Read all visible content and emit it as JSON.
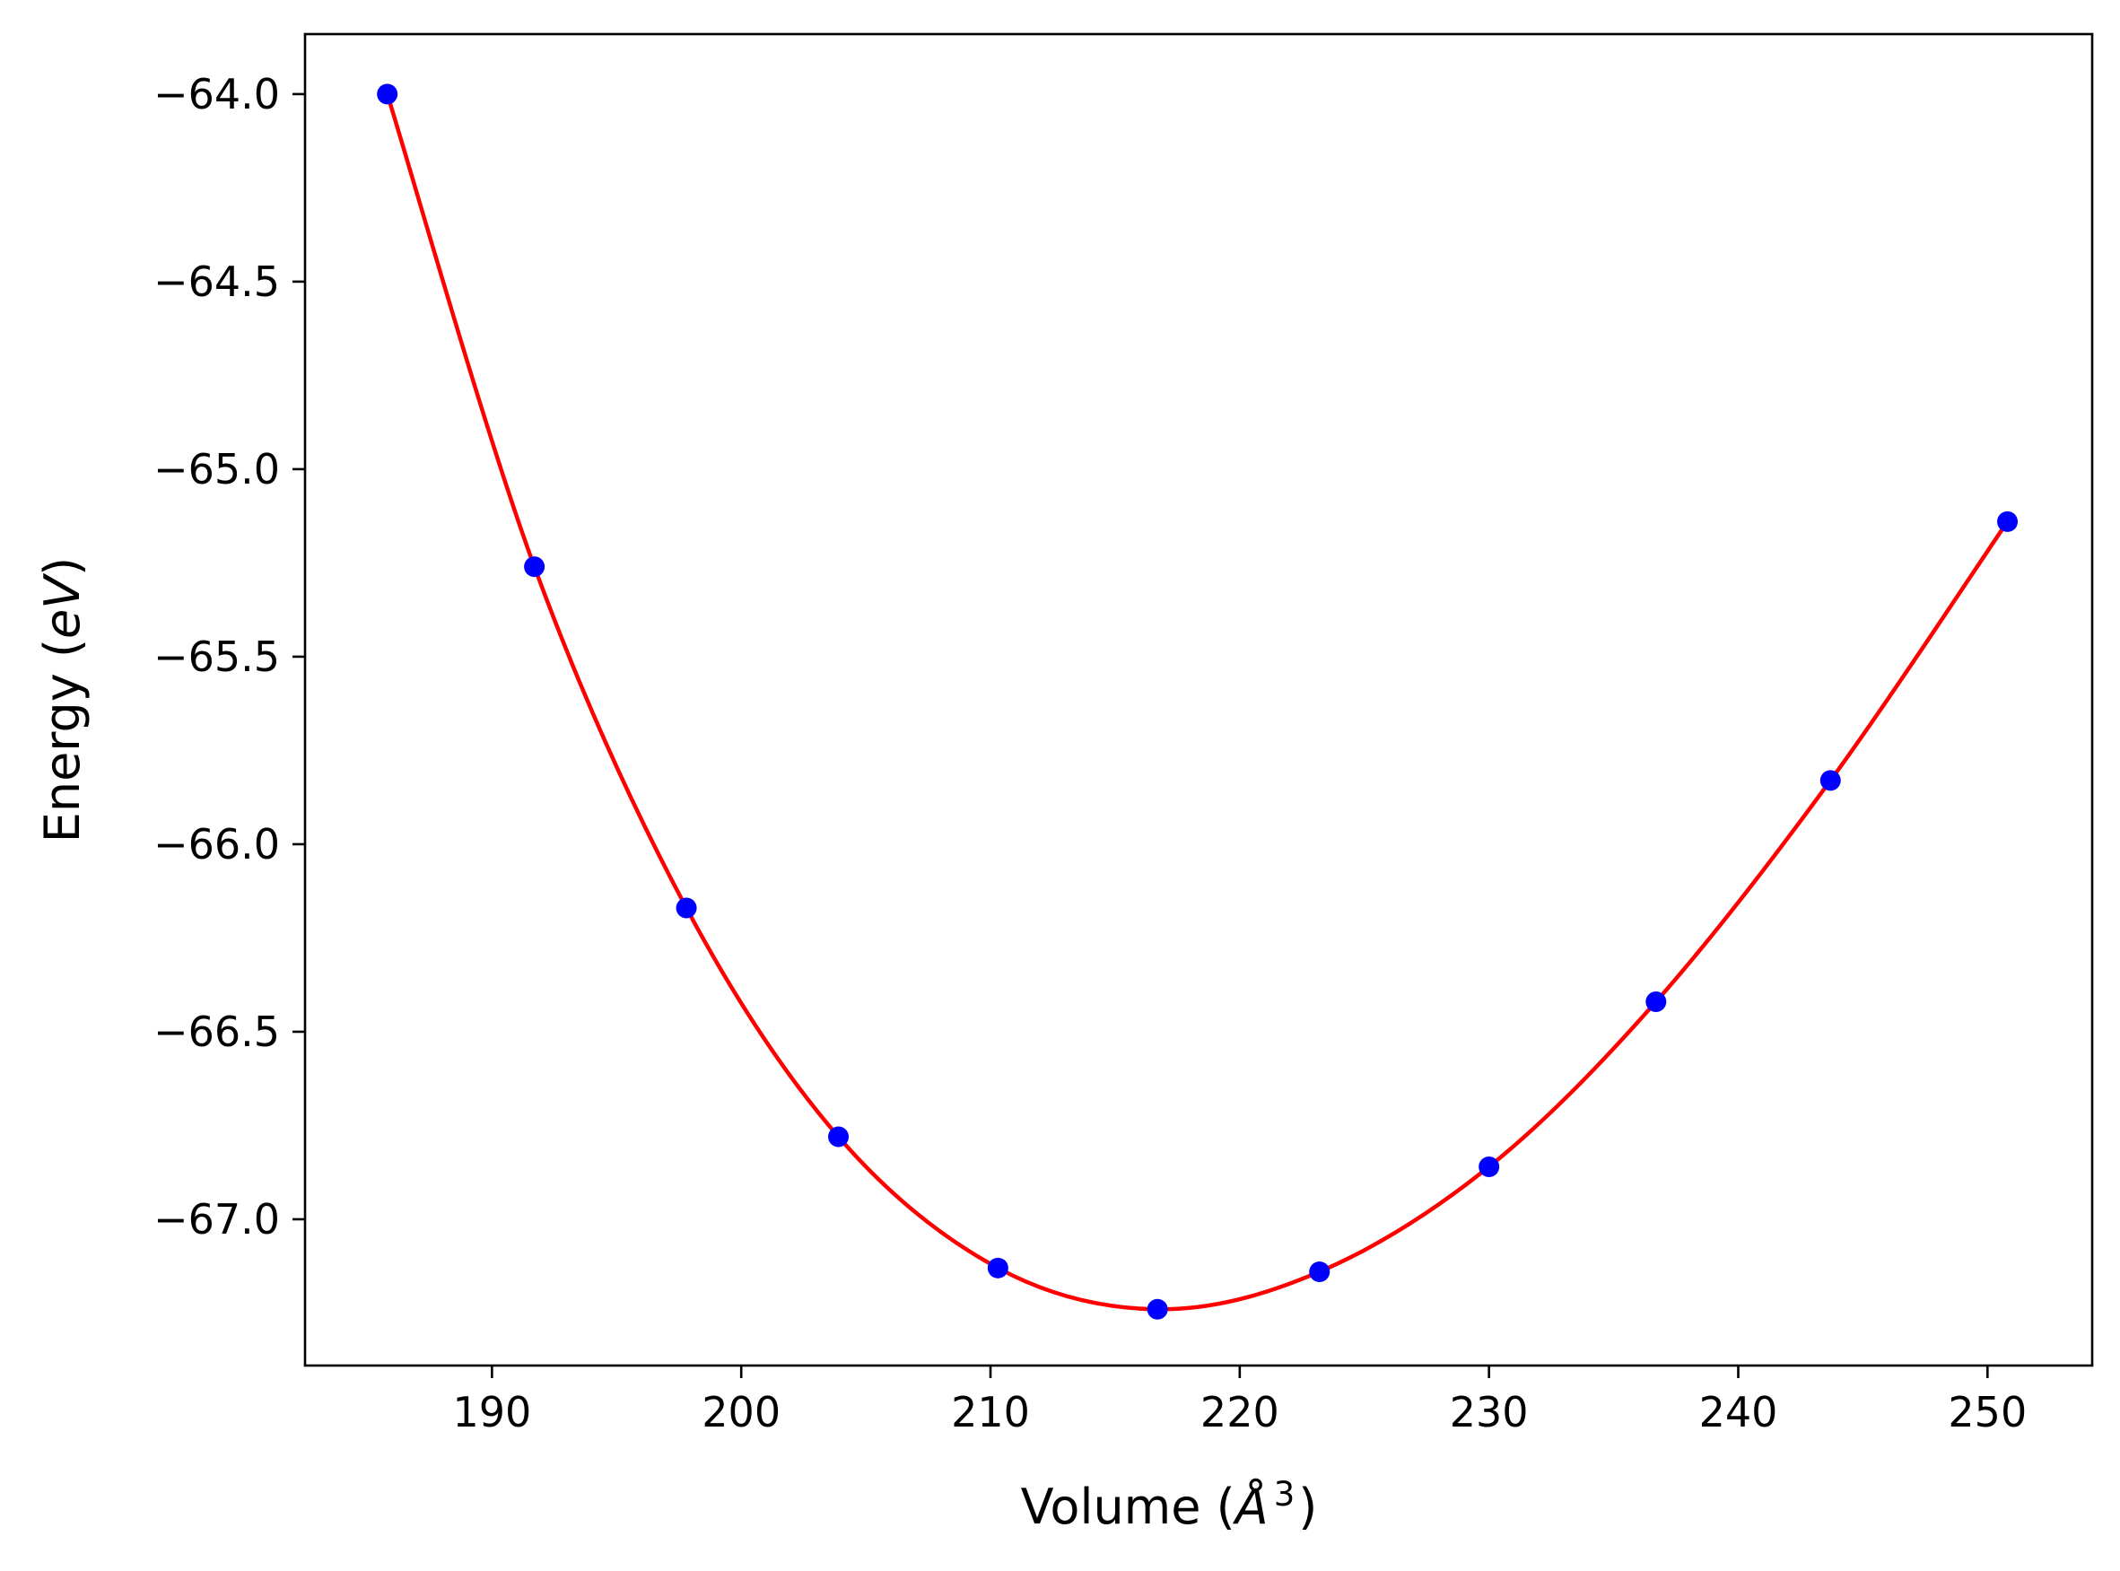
{
  "chart_data": {
    "type": "line",
    "title": "",
    "xlabel": {
      "prefix": "Volume (",
      "symbol": "Å",
      "power": "3",
      "suffix": ")"
    },
    "ylabel": {
      "prefix": "Energy (",
      "symbol": "eV",
      "suffix": ")"
    },
    "xlim": [
      182.5,
      254.2
    ],
    "ylim": [
      -67.39,
      -63.84
    ],
    "x_ticks": [
      190,
      200,
      210,
      220,
      230,
      240,
      250
    ],
    "x_tick_labels": [
      "190",
      "200",
      "210",
      "220",
      "230",
      "240",
      "250"
    ],
    "y_ticks": [
      -64.0,
      -64.5,
      -65.0,
      -65.5,
      -66.0,
      -66.5,
      -67.0
    ],
    "y_tick_labels": [
      "−64.0",
      "−64.5",
      "−65.0",
      "−65.5",
      "−66.0",
      "−66.5",
      "−67.0"
    ],
    "grid": false,
    "legend": "none",
    "series": [
      {
        "kind": "points",
        "marker": "circle",
        "color": "#0000ff",
        "x": [
          185.8,
          191.7,
          197.8,
          203.9,
          210.3,
          216.7,
          223.2,
          230.0,
          236.7,
          243.7,
          250.8
        ],
        "y": [
          -64.0,
          -65.26,
          -66.17,
          -66.78,
          -67.13,
          -67.24,
          -67.14,
          -66.86,
          -66.42,
          -65.83,
          -65.14
        ]
      },
      {
        "kind": "fit-curve",
        "color": "#ff0000",
        "x": [
          185.8,
          191.7,
          197.8,
          203.9,
          210.3,
          216.7,
          223.2,
          230.0,
          236.7,
          243.7,
          250.8
        ],
        "y": [
          -64.0,
          -65.26,
          -66.17,
          -66.78,
          -67.13,
          -67.24,
          -67.14,
          -66.86,
          -66.42,
          -65.83,
          -65.14
        ]
      }
    ],
    "colors": {
      "points": "#0000ff",
      "curve": "#ff0000",
      "axes": "#000000"
    }
  }
}
